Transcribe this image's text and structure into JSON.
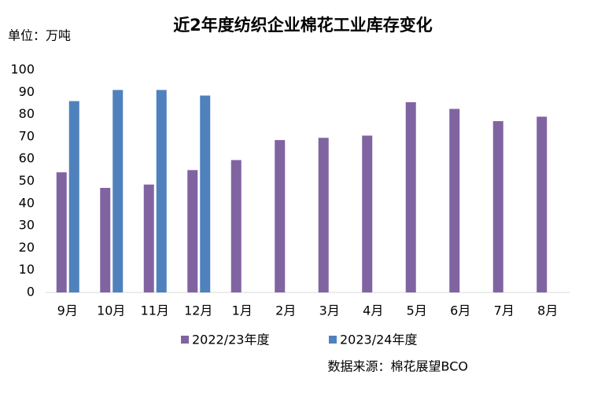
{
  "chart_data": {
    "type": "bar",
    "title": "近2年度纺织企业棉花工业库存变化",
    "unit_label": "单位：万吨",
    "source": "数据来源：棉花展望BCO",
    "categories": [
      "9月",
      "10月",
      "11月",
      "12月",
      "1月",
      "2月",
      "3月",
      "4月",
      "5月",
      "6月",
      "7月",
      "8月"
    ],
    "series": [
      {
        "name": "2022/23年度",
        "color": "#8064a2",
        "values": [
          54,
          47,
          48.5,
          55,
          59.5,
          68.5,
          69.5,
          70.5,
          85.5,
          82.5,
          77,
          79
        ]
      },
      {
        "name": "2023/24年度",
        "color": "#4f81bd",
        "values": [
          86,
          91,
          91,
          88.5,
          null,
          null,
          null,
          null,
          null,
          null,
          null,
          null
        ]
      }
    ],
    "ylim": [
      0,
      100
    ],
    "yticks": [
      0,
      10,
      20,
      30,
      40,
      50,
      60,
      70,
      80,
      90,
      100
    ],
    "grid": false,
    "legend": "bottom"
  }
}
